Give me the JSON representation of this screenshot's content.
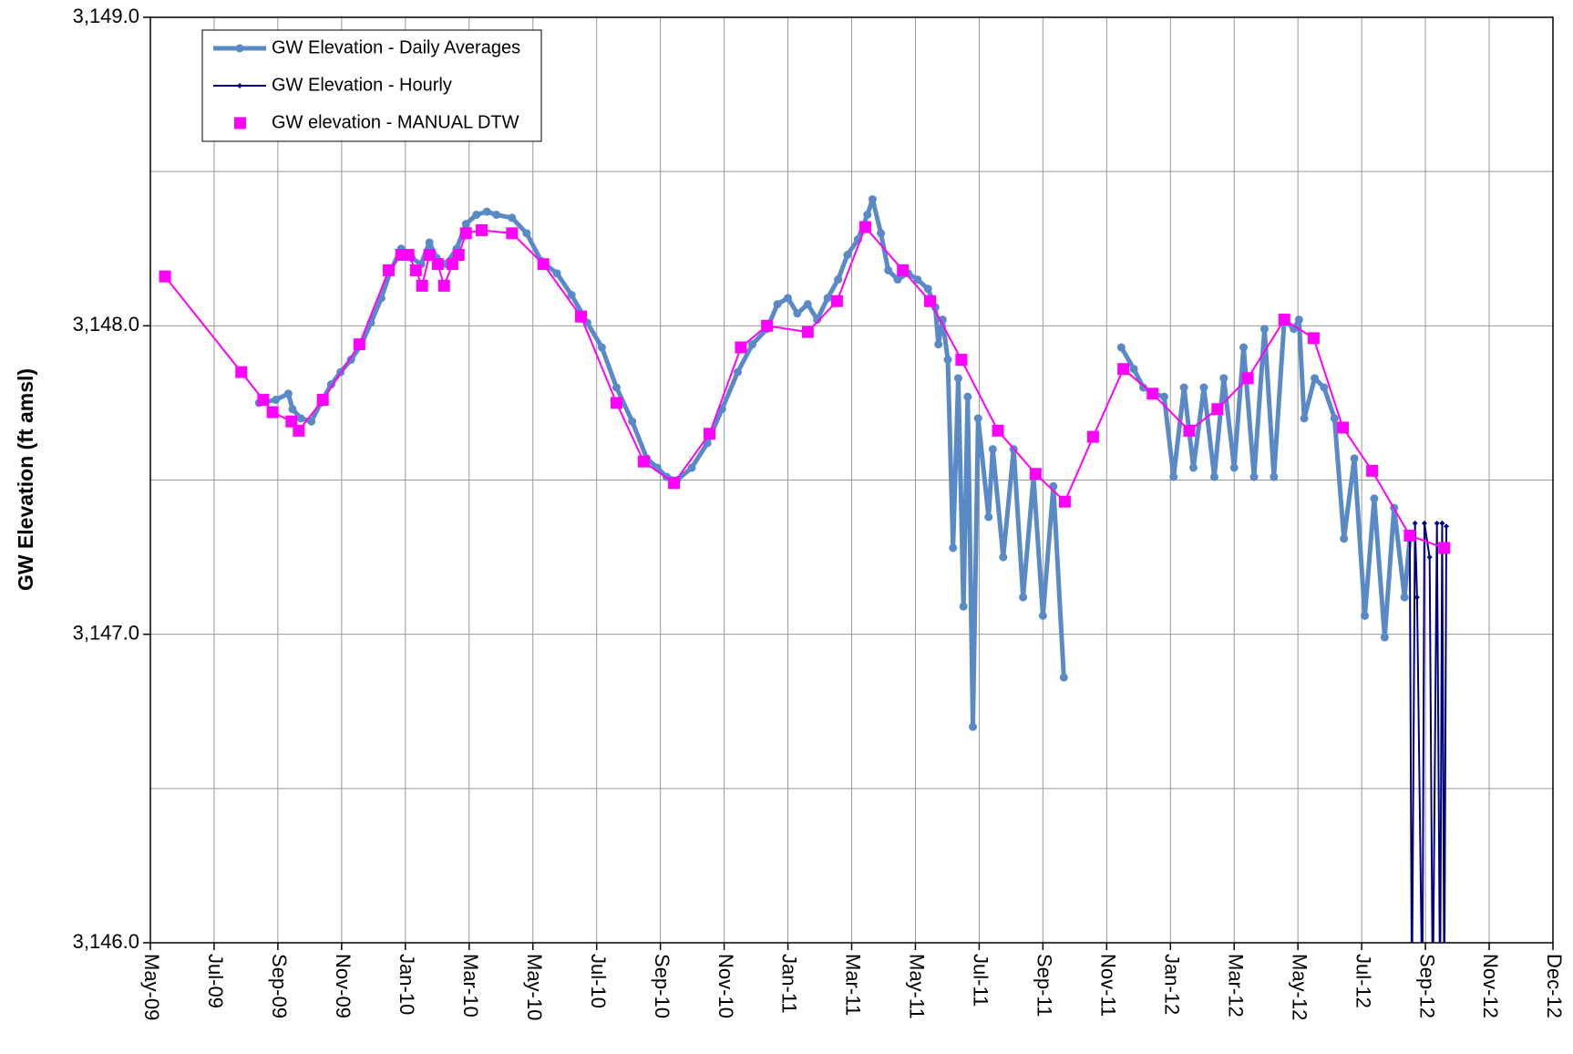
{
  "chart_data": {
    "type": "line",
    "y_label": "GW Elevation (ft amsl)",
    "xlim": [
      39934,
      41276
    ],
    "xticks": [
      {
        "value": 39934,
        "label": "May-09"
      },
      {
        "value": 39995,
        "label": "Jul-09"
      },
      {
        "value": 40056,
        "label": "Sep-09"
      },
      {
        "value": 40117,
        "label": "Nov-09"
      },
      {
        "value": 40178,
        "label": "Jan-10"
      },
      {
        "value": 40239,
        "label": "Mar-10"
      },
      {
        "value": 40300,
        "label": "May-10"
      },
      {
        "value": 40361,
        "label": "Jul-10"
      },
      {
        "value": 40422,
        "label": "Sep-10"
      },
      {
        "value": 40483,
        "label": "Nov-10"
      },
      {
        "value": 40544,
        "label": "Jan-11"
      },
      {
        "value": 40605,
        "label": "Mar-11"
      },
      {
        "value": 40666,
        "label": "May-11"
      },
      {
        "value": 40727,
        "label": "Jul-11"
      },
      {
        "value": 40788,
        "label": "Sep-11"
      },
      {
        "value": 40849,
        "label": "Nov-11"
      },
      {
        "value": 40910,
        "label": "Jan-12"
      },
      {
        "value": 40971,
        "label": "Mar-12"
      },
      {
        "value": 41032,
        "label": "May-12"
      },
      {
        "value": 41093,
        "label": "Jul-12"
      },
      {
        "value": 41154,
        "label": "Sep-12"
      },
      {
        "value": 41215,
        "label": "Nov-12"
      },
      {
        "value": 41276,
        "label": "Dec-12"
      }
    ],
    "ylim": [
      3146,
      3149
    ],
    "yticks": [
      {
        "value": 3146,
        "label": "3,146.0"
      },
      {
        "value": 3147,
        "label": "3,147.0"
      },
      {
        "value": 3148,
        "label": "3,148.0"
      },
      {
        "value": 3149,
        "label": "3,149.0"
      }
    ],
    "minor_yticks": [
      3146.5,
      3147.5,
      3148.5
    ],
    "grid": true,
    "legend": "upper left",
    "series": [
      {
        "name": "GW Elevation - Daily Averages",
        "color": "#5a8ac6",
        "style": "line-circle",
        "x": [
          40038,
          40054,
          40066,
          40070,
          40078,
          40088,
          40097,
          40107,
          40116,
          40126,
          40136,
          40145,
          40155,
          40164,
          40174,
          40184,
          40193,
          40201,
          40208,
          40217,
          40227,
          40236,
          40246,
          40256,
          40265,
          40280,
          40294,
          40308,
          40323,
          40337,
          40352,
          40366,
          40380,
          40395,
          40409,
          40419,
          40428,
          40438,
          40452,
          40467,
          40481,
          40496,
          40510,
          40524,
          40534,
          40544,
          40553,
          40563,
          40572,
          40582,
          40592,
          40601,
          40611,
          40620,
          40625,
          40633,
          40640,
          40649,
          40659,
          40668,
          40678,
          40685,
          40688,
          40692,
          40697,
          40702,
          40707,
          40712,
          40716,
          40721,
          40726,
          40736,
          40740,
          40750,
          40760,
          40769,
          40779,
          40788,
          40798,
          40808,
          null,
          40863,
          40875,
          40884,
          40894,
          40904,
          40913,
          40923,
          40932,
          40942,
          40952,
          40961,
          40971,
          40980,
          40990,
          41000,
          41009,
          41019,
          41028,
          41033,
          41038,
          41048,
          41057,
          41067,
          41076,
          41086,
          41096,
          41105,
          41115,
          41124,
          41134,
          41139
        ],
        "values": [
          3147.75,
          3147.76,
          3147.78,
          3147.73,
          3147.7,
          3147.69,
          3147.75,
          3147.81,
          3147.85,
          3147.89,
          3147.94,
          3148.01,
          3148.09,
          3148.18,
          3148.25,
          3148.22,
          3148.2,
          3148.27,
          3148.22,
          3148.2,
          3148.25,
          3148.33,
          3148.36,
          3148.37,
          3148.36,
          3148.35,
          3148.3,
          3148.21,
          3148.17,
          3148.1,
          3148.01,
          3147.93,
          3147.8,
          3147.69,
          3147.57,
          3147.54,
          3147.51,
          3147.5,
          3147.54,
          3147.62,
          3147.73,
          3147.85,
          3147.94,
          3147.99,
          3148.07,
          3148.09,
          3148.04,
          3148.07,
          3148.02,
          3148.09,
          3148.15,
          3148.23,
          3148.28,
          3148.36,
          3148.41,
          3148.3,
          3148.18,
          3148.15,
          3148.17,
          3148.15,
          3148.12,
          3148.06,
          3147.94,
          3148.02,
          3147.89,
          3147.28,
          3147.83,
          3147.09,
          3147.77,
          3146.7,
          3147.7,
          3147.38,
          3147.6,
          3147.25,
          3147.6,
          3147.12,
          3147.51,
          3147.06,
          3147.48,
          3146.86,
          null,
          3147.93,
          3147.86,
          3147.8,
          3147.78,
          3147.77,
          3147.51,
          3147.8,
          3147.54,
          3147.8,
          3147.51,
          3147.83,
          3147.54,
          3147.93,
          3147.51,
          3147.99,
          3147.51,
          3148.02,
          3147.99,
          3148.02,
          3147.7,
          3147.83,
          3147.8,
          3147.7,
          3147.31,
          3147.57,
          3147.06,
          3147.44,
          3146.99,
          3147.41,
          3147.12,
          3147.31
        ]
      },
      {
        "name": "GW Elevation - Hourly",
        "color": "#000080",
        "style": "line-diamond",
        "x": [
          41139,
          41141,
          41144,
          41146,
          41151,
          41153,
          41158,
          41161,
          41165,
          41168,
          41170,
          41172,
          41174
        ],
        "values": [
          3147.31,
          3145.8,
          3147.36,
          3147.12,
          3145.8,
          3147.36,
          3147.25,
          3145.8,
          3147.36,
          3145.8,
          3147.36,
          3145.8,
          3147.35
        ]
      },
      {
        "name": "GW elevation - MANUAL DTW",
        "color": "#ff00ff",
        "style": "square",
        "x": [
          39948,
          40021,
          40042,
          40051,
          40069,
          40076,
          40099,
          40134,
          40162,
          40174,
          40181,
          40188,
          40194,
          40201,
          40209,
          40215,
          40223,
          40229,
          40236,
          40251,
          40280,
          40310,
          40346,
          40380,
          40406,
          40435,
          40469,
          40499,
          40524,
          40563,
          40591,
          40618,
          40654,
          40680,
          40710,
          40745,
          40781,
          40809,
          40836,
          40865,
          40893,
          40928,
          40955,
          40984,
          41019,
          41047,
          41075,
          41103,
          41139,
          41172
        ],
        "values": [
          3148.16,
          3147.85,
          3147.76,
          3147.72,
          3147.69,
          3147.66,
          3147.76,
          3147.94,
          3148.18,
          3148.23,
          3148.23,
          3148.18,
          3148.13,
          3148.23,
          3148.2,
          3148.13,
          3148.2,
          3148.23,
          3148.3,
          3148.31,
          3148.3,
          3148.2,
          3148.03,
          3147.75,
          3147.56,
          3147.49,
          3147.65,
          3147.93,
          3148.0,
          3147.98,
          3148.08,
          3148.32,
          3148.18,
          3148.08,
          3147.89,
          3147.66,
          3147.52,
          3147.43,
          3147.64,
          3147.86,
          3147.78,
          3147.66,
          3147.73,
          3147.83,
          3148.02,
          3147.96,
          3147.67,
          3147.53,
          3147.32,
          3147.28
        ]
      }
    ]
  }
}
